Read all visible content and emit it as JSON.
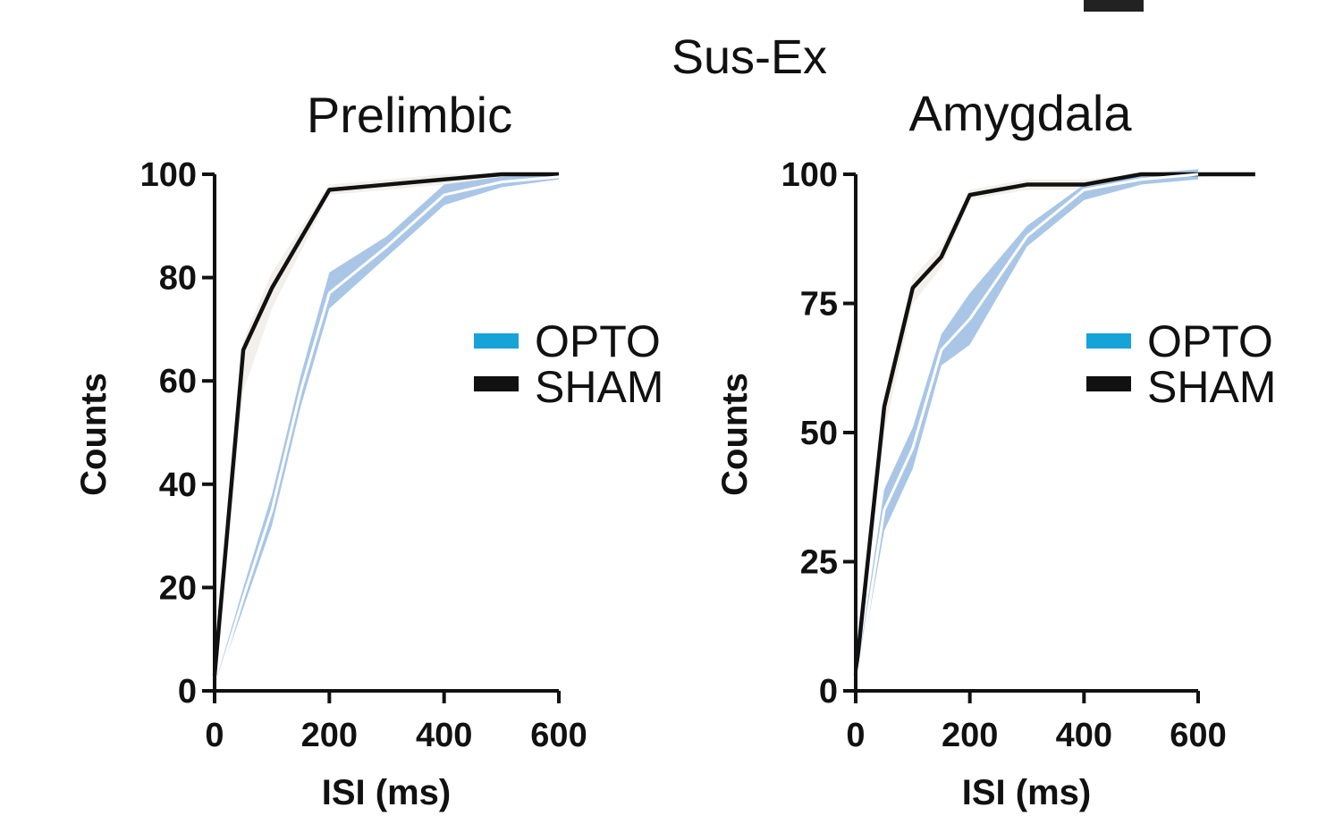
{
  "figure_title": "Sus-Ex",
  "colors": {
    "opto": "#16a3d8",
    "opto_band": "#a9c6e6",
    "sham": "#111111",
    "sham_band": "#f3efea"
  },
  "chart_data": [
    {
      "type": "line",
      "title": "Prelimbic",
      "xlabel": "ISI (ms)",
      "ylabel": "Counts",
      "xlim": [
        0,
        600
      ],
      "ylim": [
        0,
        100
      ],
      "xticks": [
        "0",
        "200",
        "400",
        "600"
      ],
      "yticks": [
        "0",
        "20",
        "40",
        "60",
        "80",
        "100"
      ],
      "legend": [
        "OPTO",
        "SHAM"
      ],
      "series": [
        {
          "name": "SHAM",
          "x": [
            0,
            50,
            100,
            200,
            300,
            400,
            500,
            600
          ],
          "values": [
            3,
            66,
            78,
            97,
            98,
            99,
            100,
            100
          ],
          "lower": [
            1,
            58,
            74,
            96,
            97,
            98,
            99,
            99
          ],
          "upper": [
            6,
            68,
            81,
            98,
            99,
            100,
            100,
            100
          ]
        },
        {
          "name": "OPTO",
          "x": [
            0,
            50,
            100,
            150,
            200,
            300,
            400,
            500,
            600
          ],
          "values": [
            0,
            18,
            35,
            58,
            77,
            86,
            96,
            98.5,
            99.5
          ],
          "lower": [
            0,
            16,
            32,
            55,
            74,
            84,
            94,
            97.5,
            99
          ],
          "upper": [
            1,
            20,
            38,
            61,
            81,
            88,
            98,
            99.5,
            100
          ]
        }
      ]
    },
    {
      "type": "line",
      "title": "Amygdala",
      "xlabel": "ISI (ms)",
      "ylabel": "Counts",
      "xlim": [
        0,
        600
      ],
      "ylim": [
        0,
        100
      ],
      "xticks": [
        "0",
        "200",
        "400",
        "600"
      ],
      "yticks": [
        "0",
        "25",
        "50",
        "75",
        "100"
      ],
      "legend": [
        "OPTO",
        "SHAM"
      ],
      "series": [
        {
          "name": "SHAM",
          "x": [
            0,
            50,
            100,
            150,
            200,
            300,
            400,
            500,
            600,
            700
          ],
          "values": [
            3,
            55,
            78,
            84,
            96,
            98,
            98,
            100,
            100,
            100
          ],
          "lower": [
            1,
            50,
            75,
            82,
            95,
            97,
            97,
            99,
            99.5,
            100
          ],
          "upper": [
            6,
            57,
            80,
            86,
            97,
            99,
            99,
            100,
            100,
            100
          ]
        },
        {
          "name": "OPTO",
          "x": [
            0,
            50,
            100,
            150,
            200,
            300,
            400,
            500,
            600
          ],
          "values": [
            0,
            35,
            47,
            66,
            72,
            88,
            97,
            99,
            100
          ],
          "lower": [
            0,
            31,
            43,
            63,
            67,
            86,
            95,
            98,
            99
          ],
          "upper": [
            2,
            39,
            51,
            69,
            77,
            90,
            98,
            100,
            101
          ]
        }
      ]
    }
  ]
}
